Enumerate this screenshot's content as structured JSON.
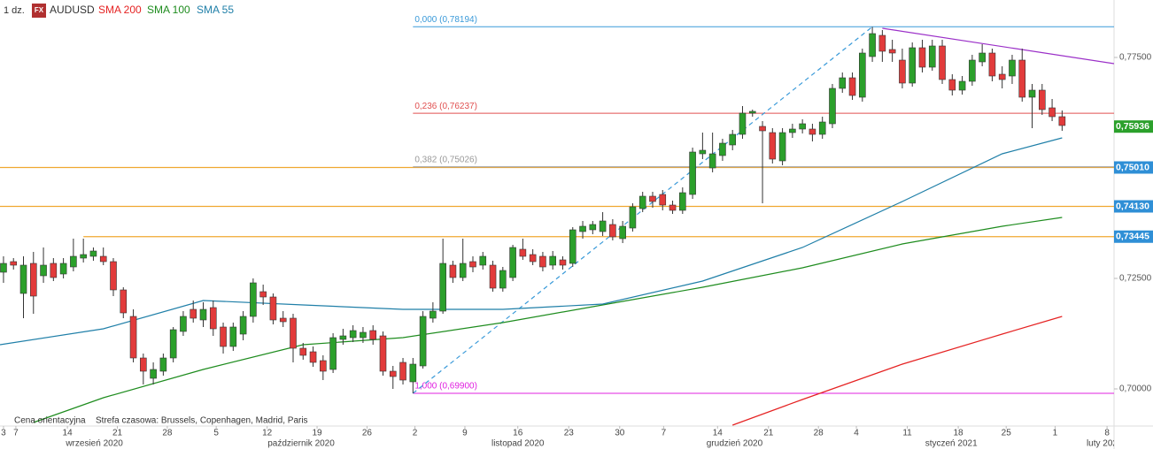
{
  "chart_data": {
    "type": "candlestick",
    "interval": "1 dz.",
    "badge": "FX",
    "symbol": "AUDUSD",
    "notes": [
      "Cena orientacyjna",
      "Strefa czasowa: Brussels, Copenhagen, Madrid, Paris"
    ],
    "up_color": "#2ba02b",
    "down_color": "#e23b3b",
    "open": [
      0.7264,
      0.7288,
      0.7216,
      0.7284,
      0.7256,
      0.7284,
      0.726,
      0.7276,
      0.7296,
      0.73,
      0.73,
      0.7288,
      0.7224,
      0.7164,
      0.707,
      0.7024,
      0.704,
      0.707,
      0.713,
      0.718,
      0.7156,
      0.7184,
      0.714,
      0.7096,
      0.7124,
      0.7164,
      0.722,
      0.7208,
      0.716,
      0.716,
      0.7092,
      0.7084,
      0.7064,
      0.7044,
      0.7112,
      0.7116,
      0.7116,
      0.7132,
      0.712,
      0.704,
      0.706,
      0.7016,
      0.7052,
      0.716,
      0.7176,
      0.728,
      0.7252,
      0.7288,
      0.728,
      0.728,
      0.7228,
      0.7252,
      0.7316,
      0.7304,
      0.73,
      0.728,
      0.7292,
      0.7284,
      0.7356,
      0.736,
      0.7356,
      0.7372,
      0.734,
      0.7364,
      0.7408,
      0.7436,
      0.744,
      0.7416,
      0.7404,
      0.744,
      0.7532,
      0.75,
      0.7528,
      0.7552,
      0.7576,
      0.7624,
      0.7594,
      0.758,
      0.7516,
      0.758,
      0.7588,
      0.7588,
      0.7576,
      0.76,
      0.768,
      0.7704,
      0.766,
      0.7752,
      0.78,
      0.7768,
      0.7744,
      0.7692,
      0.7772,
      0.7728,
      0.7776,
      0.77,
      0.7676,
      0.7696,
      0.774,
      0.776,
      0.7712,
      0.7708,
      0.7744,
      0.766,
      0.7676,
      0.7636,
      0.7616
    ],
    "close": [
      0.7284,
      0.728,
      0.728,
      0.721,
      0.728,
      0.7252,
      0.7284,
      0.73,
      0.7304,
      0.7312,
      0.7288,
      0.7224,
      0.7172,
      0.707,
      0.704,
      0.7044,
      0.707,
      0.7134,
      0.7164,
      0.716,
      0.718,
      0.7136,
      0.7096,
      0.714,
      0.7164,
      0.724,
      0.7208,
      0.7156,
      0.7152,
      0.7092,
      0.7076,
      0.706,
      0.704,
      0.7116,
      0.712,
      0.7132,
      0.7128,
      0.7112,
      0.704,
      0.7028,
      0.702,
      0.7056,
      0.7164,
      0.7176,
      0.7284,
      0.7252,
      0.7284,
      0.7276,
      0.73,
      0.7228,
      0.7268,
      0.732,
      0.73,
      0.7288,
      0.7276,
      0.73,
      0.728,
      0.736,
      0.7368,
      0.7372,
      0.738,
      0.7344,
      0.7368,
      0.7412,
      0.7436,
      0.7424,
      0.7416,
      0.7404,
      0.7444,
      0.7536,
      0.754,
      0.7532,
      0.7556,
      0.7576,
      0.7624,
      0.7628,
      0.7584,
      0.752,
      0.758,
      0.7588,
      0.76,
      0.7576,
      0.7604,
      0.768,
      0.7704,
      0.7664,
      0.776,
      0.7804,
      0.7764,
      0.776,
      0.7692,
      0.7772,
      0.7728,
      0.7776,
      0.77,
      0.7676,
      0.7696,
      0.7744,
      0.776,
      0.7708,
      0.77,
      0.7744,
      0.766,
      0.7676,
      0.7632,
      0.7616,
      0.7596
    ],
    "high": [
      0.73,
      0.7296,
      0.73,
      0.731,
      0.732,
      0.7296,
      0.7296,
      0.734,
      0.734,
      0.732,
      0.732,
      0.7296,
      0.723,
      0.718,
      0.708,
      0.706,
      0.708,
      0.714,
      0.7176,
      0.72,
      0.7196,
      0.72,
      0.715,
      0.715,
      0.7176,
      0.725,
      0.7236,
      0.7216,
      0.7176,
      0.717,
      0.7104,
      0.7096,
      0.7076,
      0.7126,
      0.7136,
      0.7144,
      0.714,
      0.7144,
      0.713,
      0.7052,
      0.707,
      0.707,
      0.7176,
      0.7196,
      0.734,
      0.729,
      0.734,
      0.73,
      0.731,
      0.729,
      0.7276,
      0.7326,
      0.734,
      0.7316,
      0.731,
      0.7312,
      0.73,
      0.7366,
      0.738,
      0.738,
      0.74,
      0.7384,
      0.738,
      0.742,
      0.7446,
      0.7446,
      0.745,
      0.7426,
      0.7456,
      0.7546,
      0.758,
      0.758,
      0.7566,
      0.7586,
      0.764,
      0.7632,
      0.7606,
      0.759,
      0.759,
      0.76,
      0.761,
      0.76,
      0.7616,
      0.769,
      0.7716,
      0.7716,
      0.777,
      0.7819,
      0.7812,
      0.779,
      0.777,
      0.7784,
      0.779,
      0.779,
      0.779,
      0.7712,
      0.7708,
      0.7756,
      0.778,
      0.777,
      0.773,
      0.7756,
      0.777,
      0.769,
      0.769,
      0.7656,
      0.763
    ],
    "low": [
      0.724,
      0.727,
      0.716,
      0.717,
      0.724,
      0.7244,
      0.725,
      0.7266,
      0.7286,
      0.729,
      0.728,
      0.721,
      0.716,
      0.706,
      0.701,
      0.701,
      0.703,
      0.706,
      0.712,
      0.715,
      0.714,
      0.712,
      0.708,
      0.7086,
      0.711,
      0.715,
      0.719,
      0.7146,
      0.714,
      0.706,
      0.7066,
      0.705,
      0.702,
      0.7036,
      0.71,
      0.7106,
      0.7104,
      0.71,
      0.703,
      0.7,
      0.701,
      0.699,
      0.7046,
      0.715,
      0.717,
      0.724,
      0.7244,
      0.7264,
      0.727,
      0.722,
      0.722,
      0.7244,
      0.7292,
      0.728,
      0.7266,
      0.727,
      0.727,
      0.7276,
      0.734,
      0.735,
      0.7346,
      0.7336,
      0.733,
      0.7356,
      0.74,
      0.741,
      0.7404,
      0.7396,
      0.7396,
      0.743,
      0.752,
      0.749,
      0.7516,
      0.754,
      0.7566,
      0.7616,
      0.742,
      0.751,
      0.7506,
      0.7568,
      0.7578,
      0.756,
      0.7566,
      0.759,
      0.767,
      0.7654,
      0.765,
      0.774,
      0.774,
      0.774,
      0.768,
      0.7684,
      0.7716,
      0.772,
      0.769,
      0.7664,
      0.7666,
      0.7686,
      0.773,
      0.7696,
      0.768,
      0.769,
      0.765,
      0.759,
      0.762,
      0.7606,
      0.7584
    ],
    "series": [
      {
        "name": "SMA 200",
        "color": "#e52222",
        "x": [
          73,
          80,
          90,
          100,
          106
        ],
        "values": [
          0.6918,
          0.6976,
          0.7056,
          0.7124,
          0.7164
        ]
      },
      {
        "name": "SMA 100",
        "color": "#1e8c1e",
        "x": [
          3,
          10,
          20,
          30,
          40,
          50,
          60,
          70,
          80,
          90,
          100,
          106
        ],
        "values": [
          0.6924,
          0.698,
          0.7044,
          0.71,
          0.7116,
          0.715,
          0.719,
          0.723,
          0.7274,
          0.7328,
          0.7368,
          0.7388
        ]
      },
      {
        "name": "SMA 55",
        "color": "#1f7fa8",
        "x": [
          -0.35,
          10,
          20,
          30,
          40,
          50,
          60,
          70,
          80,
          90,
          100,
          106
        ],
        "values": [
          0.71,
          0.7136,
          0.72,
          0.719,
          0.718,
          0.718,
          0.7192,
          0.7244,
          0.732,
          0.7424,
          0.7532,
          0.7568
        ]
      }
    ],
    "fib_levels": [
      {
        "value": 0.78194,
        "label": "0,000 (0,78194)",
        "color": "#3a9ad9"
      },
      {
        "value": 0.76237,
        "label": "0,236 (0,76237)",
        "color": "#e05050"
      },
      {
        "value": 0.75026,
        "label": "0,382 (0,75026)",
        "color": "#999999"
      },
      {
        "value": 0.699,
        "label": "1,000 (0,69900)",
        "color": "#e020e0"
      }
    ],
    "fib_start": 41,
    "fib_line": {
      "x": [
        41,
        87
      ],
      "values": [
        0.699,
        0.78194
      ],
      "color": "#3a9ad9"
    },
    "trend_line": {
      "x": [
        88,
        111.2
      ],
      "values": [
        0.7816,
        0.7736
      ],
      "color": "#9b30c8"
    },
    "levels": [
      {
        "value": 0.7501,
        "start": -0.35,
        "color": "#f0a830"
      },
      {
        "value": 0.7413,
        "start": -0.35,
        "color": "#f0a830"
      },
      {
        "value": 0.73445,
        "start": 8,
        "color": "#f0a830"
      }
    ],
    "price_labels": [
      {
        "value": 0.75936,
        "label": "0,75936",
        "color": "#2ba02b"
      },
      {
        "value": 0.7501,
        "label": "0,75010",
        "color": "#2f8fd6"
      },
      {
        "value": 0.7413,
        "label": "0,74130",
        "color": "#2f8fd6"
      },
      {
        "value": 0.73445,
        "label": "0,73445",
        "color": "#2f8fd6"
      }
    ],
    "ylim": [
      0.6916,
      0.788
    ],
    "yticks": [
      {
        "value": 0.775,
        "label": "0,77500"
      },
      {
        "value": 0.725,
        "label": "0,72500"
      },
      {
        "value": 0.7,
        "label": "0,70000"
      }
    ],
    "xlim": [
      -0.35,
      111.2
    ],
    "xticks": [
      {
        "value": 0,
        "label": "3"
      },
      {
        "value": 1.24,
        "label": "7"
      },
      {
        "value": 6.4,
        "label": "14"
      },
      {
        "value": 11.4,
        "label": "21"
      },
      {
        "value": 16.4,
        "label": "28"
      },
      {
        "value": 21.3,
        "label": "5"
      },
      {
        "value": 26.4,
        "label": "12"
      },
      {
        "value": 31.4,
        "label": "19"
      },
      {
        "value": 36.4,
        "label": "26"
      },
      {
        "value": 41.2,
        "label": "2"
      },
      {
        "value": 46.2,
        "label": "9"
      },
      {
        "value": 51.5,
        "label": "16"
      },
      {
        "value": 56.6,
        "label": "23"
      },
      {
        "value": 61.7,
        "label": "30"
      },
      {
        "value": 66.1,
        "label": "7"
      },
      {
        "value": 71.5,
        "label": "14"
      },
      {
        "value": 76.6,
        "label": "21"
      },
      {
        "value": 81.6,
        "label": "28"
      },
      {
        "value": 85.4,
        "label": "4"
      },
      {
        "value": 90.5,
        "label": "11"
      },
      {
        "value": 95.6,
        "label": "18"
      },
      {
        "value": 100.4,
        "label": "25"
      },
      {
        "value": 105.3,
        "label": "1"
      },
      {
        "value": 110.5,
        "label": "8"
      }
    ],
    "months": [
      {
        "value": 9.1,
        "label": "wrzesień 2020"
      },
      {
        "value": 29.8,
        "label": "październik 2020"
      },
      {
        "value": 51.5,
        "label": "listopad 2020"
      },
      {
        "value": 73.2,
        "label": "grudzień 2020"
      },
      {
        "value": 94.9,
        "label": "styczeń 2021"
      },
      {
        "value": 110,
        "label": "luty 202"
      }
    ]
  }
}
